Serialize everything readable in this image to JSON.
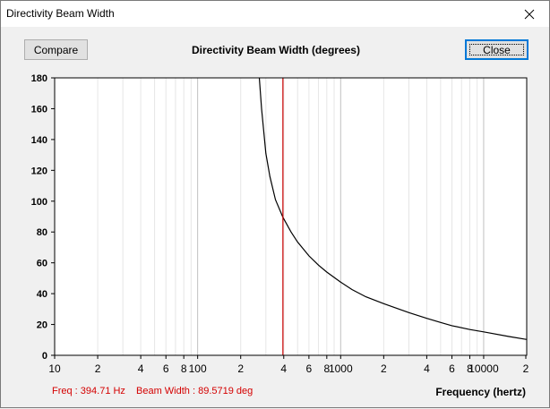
{
  "window": {
    "title": "Directivity Beam Width",
    "close_glyph": "✕"
  },
  "toolbar": {
    "compare_label": "Compare",
    "close_label": "Close"
  },
  "chart_data": {
    "type": "line",
    "title": "Directivity Beam Width (degrees)",
    "xlabel": "Frequency (hertz)",
    "ylabel": "",
    "xscale": "log",
    "xlim": [
      10,
      20000
    ],
    "ylim": [
      0,
      180
    ],
    "grid": true,
    "x_tick_labels": [
      "10",
      "2",
      "4",
      "6",
      "8",
      "100",
      "2",
      "4",
      "6",
      "8",
      "1000",
      "2",
      "4",
      "6",
      "8",
      "10000",
      "2"
    ],
    "y_ticks": [
      0,
      20,
      40,
      60,
      80,
      100,
      120,
      140,
      160,
      180
    ],
    "series": [
      {
        "x": [
          270,
          280,
          300,
          320,
          350,
          394.71,
          450,
          500,
          600,
          700,
          800,
          1000,
          1200,
          1500,
          2000,
          3000,
          4000,
          5000,
          6000,
          8000,
          10000,
          15000,
          20000
        ],
        "y": [
          180,
          160,
          131,
          116,
          101,
          89.57,
          80,
          73.5,
          64.5,
          58.5,
          54,
          47.5,
          42.7,
          38,
          33.5,
          27.7,
          24,
          21.3,
          19.2,
          16.7,
          15.2,
          12.2,
          10.3
        ],
        "color": "#000000"
      }
    ],
    "marker": {
      "x": 394.71,
      "color": "#cc0000"
    }
  },
  "readout": {
    "freq": "Freq : 394.71 Hz",
    "beam_width": "Beam Width : 89.5719 deg"
  }
}
